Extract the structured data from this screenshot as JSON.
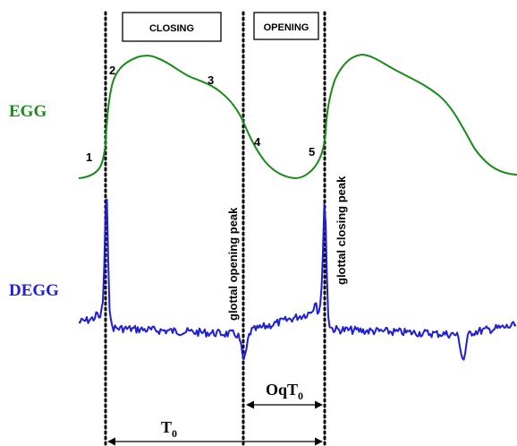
{
  "phases": {
    "closing": "CLOSING",
    "opening": "OPENING"
  },
  "signals": {
    "egg": {
      "label": "EGG",
      "color": "#1a8a1a"
    },
    "degg": {
      "label": "DEGG",
      "color": "#1f1fd6"
    }
  },
  "points": [
    "1",
    "2",
    "3",
    "4",
    "5"
  ],
  "annotations": {
    "opening_peak": "glottal opening peak",
    "closing_peak": "glottal closing peak"
  },
  "intervals": {
    "oq_main": "OqT",
    "oq_sub": "0",
    "t0_main": "T",
    "t0_sub": "0"
  },
  "colors": {
    "marker_lines": "#000000",
    "text": "#000000"
  }
}
